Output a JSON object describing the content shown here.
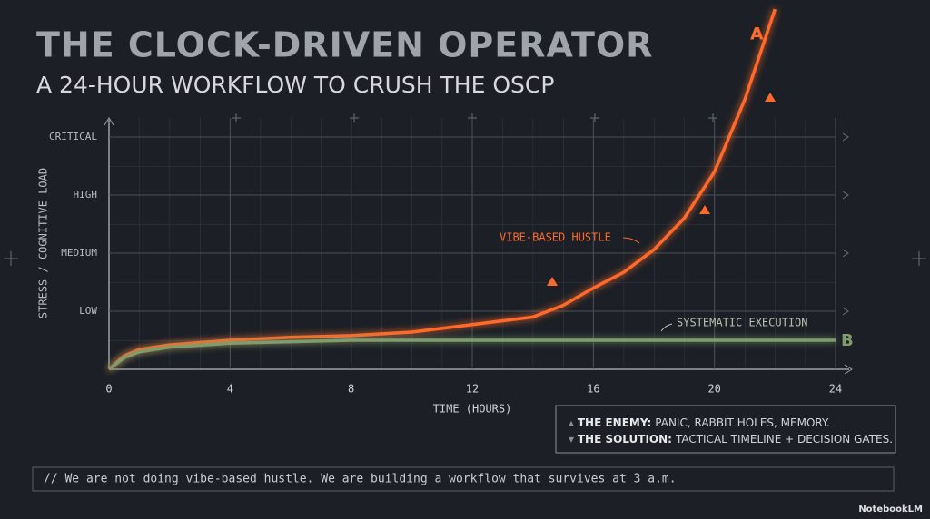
{
  "chart_data": {
    "type": "line",
    "title": "THE CLOCK-DRIVEN OPERATOR",
    "subtitle": "A 24-HOUR WORKFLOW TO CRUSH THE OSCP",
    "x_label": "TIME (HOURS)",
    "y_label": "STRESS / COGNITIVE LOAD",
    "xlim": [
      0,
      24
    ],
    "xticks": [
      0,
      4,
      8,
      12,
      16,
      20,
      24
    ],
    "ylim": [
      0,
      4.4
    ],
    "yticks": [
      {
        "value": 1,
        "label": "LOW"
      },
      {
        "value": 2,
        "label": "MEDIUM"
      },
      {
        "value": 3,
        "label": "HIGH"
      },
      {
        "value": 4,
        "label": "CRITICAL"
      }
    ],
    "grid": true,
    "series": [
      {
        "name": "VIBE-BASED HUSTLE",
        "marker": "A",
        "color": "#ff6a2a",
        "x": [
          0,
          0.5,
          1,
          2,
          4,
          6,
          8,
          10,
          12,
          14,
          15,
          16,
          17,
          18,
          19,
          20,
          21,
          22
        ],
        "values": [
          0,
          0.23,
          0.34,
          0.42,
          0.5,
          0.55,
          0.58,
          0.64,
          0.77,
          0.9,
          1.1,
          1.4,
          1.67,
          2.06,
          2.6,
          3.4,
          4.64,
          6.2
        ]
      },
      {
        "name": "SYSTEMATIC EXECUTION",
        "marker": "B",
        "color": "#7f9c6c",
        "x": [
          0,
          0.5,
          1,
          2,
          4,
          8,
          12,
          24
        ],
        "values": [
          0,
          0.2,
          0.3,
          0.38,
          0.45,
          0.5,
          0.5,
          0.5
        ]
      }
    ],
    "notes": [
      {
        "label": "THE ENEMY:",
        "text": "PANIC, RABBIT HOLES, MEMORY."
      },
      {
        "label": "THE SOLUTION:",
        "text": "TACTICAL TIMELINE + DECISION GATES."
      }
    ],
    "footer": "// We are not doing vibe-based hustle. We are building a workflow that survives at 3 a.m.",
    "watermark": "NotebookLM"
  }
}
